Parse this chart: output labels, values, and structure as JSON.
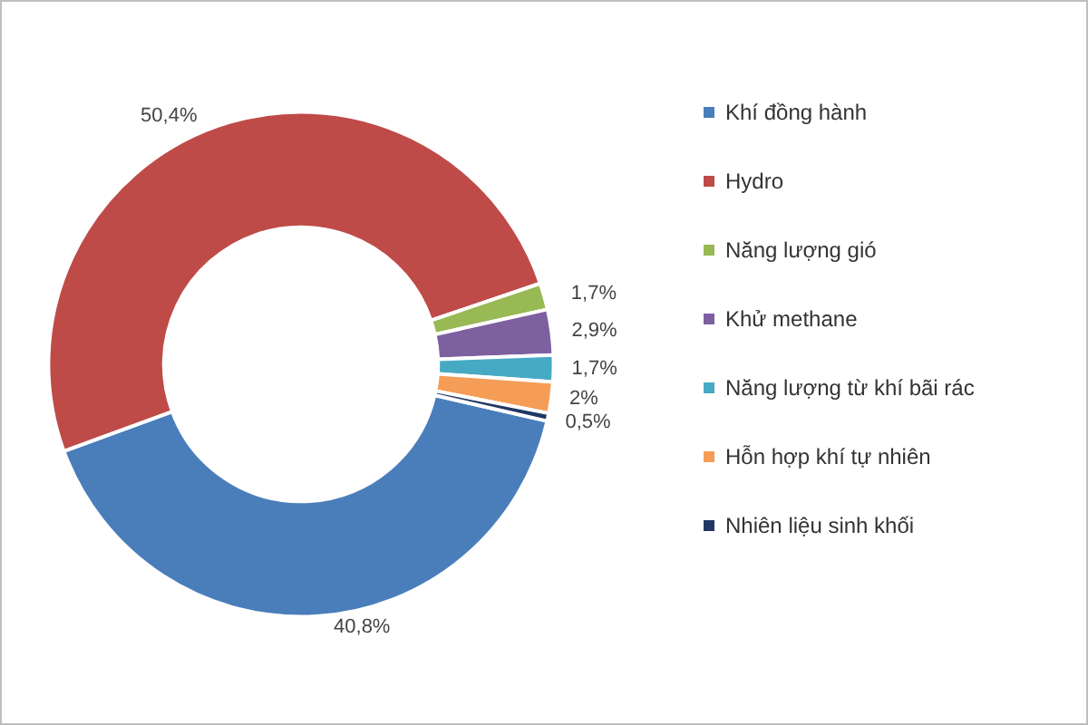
{
  "chart_data": {
    "type": "donut",
    "categories": [
      "Khí đồng hành",
      "Hydro",
      "Năng lượng gió",
      "Khử methane",
      "Năng lượng từ khí bãi rác",
      "Hỗn hợp khí tự nhiên",
      "Nhiên liệu sinh khối"
    ],
    "values": [
      40.8,
      50.4,
      1.7,
      2.9,
      1.7,
      2,
      0.5
    ],
    "colors": [
      "#4a7ebb",
      "#be4b48",
      "#98b954",
      "#7d60a0",
      "#46aac4",
      "#f59d56",
      "#1f3864"
    ],
    "value_labels": [
      "40,8%",
      "50,4%",
      "1,7%",
      "2,9%",
      "1,7%",
      "2%",
      "0,5%"
    ],
    "legend": "right"
  }
}
